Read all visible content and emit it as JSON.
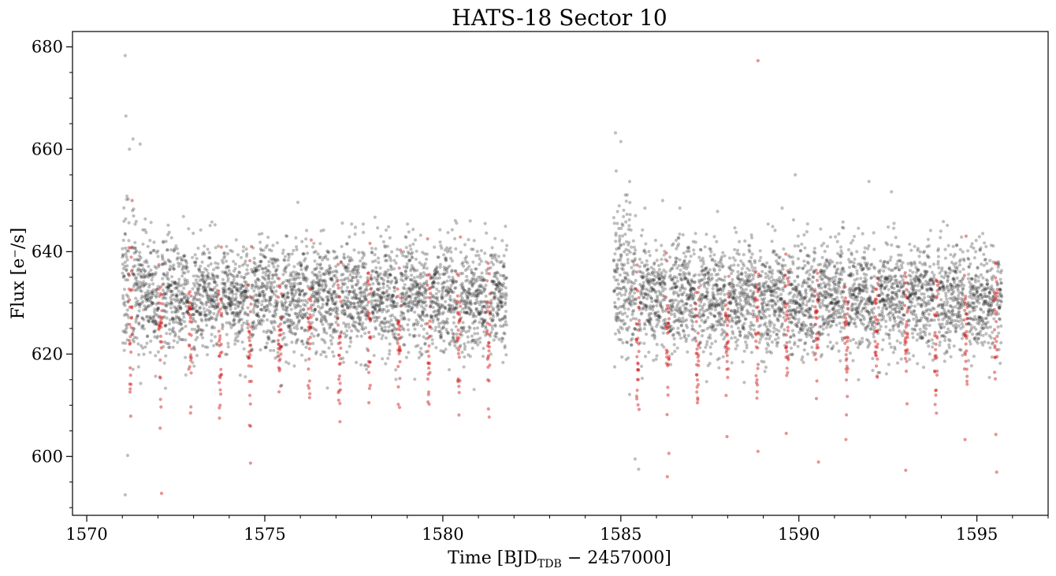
{
  "chart_data": {
    "type": "scatter",
    "title": "HATS-18 Sector 10",
    "xlabel": {
      "prefix": "Time [BJD",
      "subscript": "TDB",
      "suffix": " − 2457000]"
    },
    "ylabel": "Flux [e⁻/s]",
    "xlim": [
      1569.6,
      1597.0
    ],
    "ylim": [
      588.5,
      683.0
    ],
    "xticks": [
      {
        "value": 1570,
        "label": "1570"
      },
      {
        "value": 1575,
        "label": "1575"
      },
      {
        "value": 1580,
        "label": "1580"
      },
      {
        "value": 1585,
        "label": "1585"
      },
      {
        "value": 1590,
        "label": "1590"
      },
      {
        "value": 1595,
        "label": "1595"
      }
    ],
    "yticks": [
      {
        "value": 600,
        "label": "600"
      },
      {
        "value": 620,
        "label": "620"
      },
      {
        "value": 640,
        "label": "640"
      },
      {
        "value": 660,
        "label": "660"
      },
      {
        "value": 680,
        "label": "680"
      }
    ],
    "x_minor_step": 1,
    "y_minor_step": 5,
    "grid": false,
    "legend": "none",
    "segments": [
      [
        1571.0,
        1581.8
      ],
      [
        1584.8,
        1595.7
      ]
    ],
    "baseline_flux": 631,
    "transit_period_days": 0.8378,
    "transit_epoch": 1572.07,
    "transit_depth_flux": 20,
    "colors": {
      "series_out_of_transit": "#1a1a1a",
      "series_in_transit": "#cc1111",
      "axes": "#000000"
    },
    "series": [
      {
        "color_key": "series_out_of_transit",
        "alpha": 0.28,
        "outliers": [
          [
            1571.08,
            678.3
          ],
          [
            1571.1,
            666.5
          ],
          [
            1571.2,
            660.0
          ],
          [
            1571.3,
            662.0
          ],
          [
            1571.5,
            661.0
          ],
          [
            1571.08,
            592.5
          ],
          [
            1571.15,
            600.2
          ],
          [
            1584.85,
            663.2
          ],
          [
            1585.0,
            661.5
          ],
          [
            1585.4,
            599.5
          ],
          [
            1585.5,
            597.5
          ],
          [
            1589.9,
            655.0
          ],
          [
            1592.6,
            651.7
          ]
        ]
      },
      {
        "color_key": "series_in_transit",
        "alpha": 0.45,
        "outliers": [
          [
            1572.1,
            592.8
          ],
          [
            1588.85,
            677.3
          ],
          [
            1588.85,
            601.0
          ],
          [
            1593.0,
            597.3
          ],
          [
            1574.6,
            598.7
          ],
          [
            1590.55,
            598.9
          ],
          [
            1586.35,
            600.6
          ]
        ]
      }
    ]
  }
}
